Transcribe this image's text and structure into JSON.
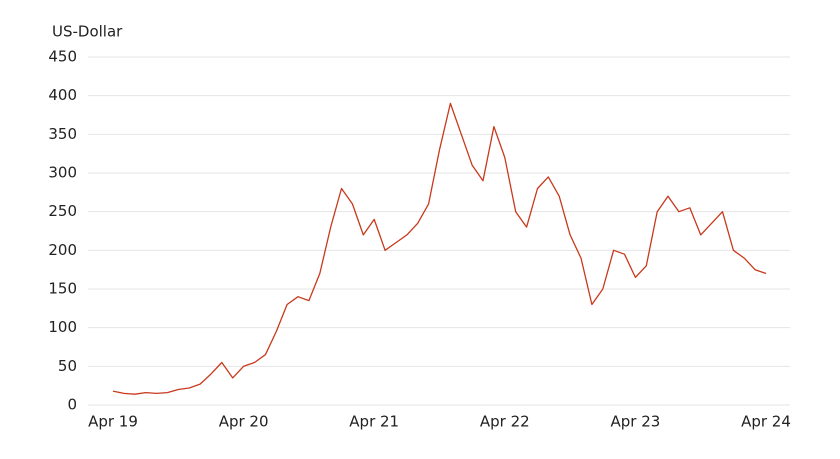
{
  "chart_data": {
    "type": "line",
    "y_label": "US-Dollar",
    "x": [
      "2019-04",
      "2019-05",
      "2019-06",
      "2019-07",
      "2019-08",
      "2019-09",
      "2019-10",
      "2019-11",
      "2019-12",
      "2020-01",
      "2020-02",
      "2020-03",
      "2020-04",
      "2020-05",
      "2020-06",
      "2020-07",
      "2020-08",
      "2020-09",
      "2020-10",
      "2020-11",
      "2020-12",
      "2021-01",
      "2021-02",
      "2021-03",
      "2021-04",
      "2021-05",
      "2021-06",
      "2021-07",
      "2021-08",
      "2021-09",
      "2021-10",
      "2021-11",
      "2021-12",
      "2022-01",
      "2022-02",
      "2022-03",
      "2022-04",
      "2022-05",
      "2022-06",
      "2022-07",
      "2022-08",
      "2022-09",
      "2022-10",
      "2022-11",
      "2022-12",
      "2023-01",
      "2023-02",
      "2023-03",
      "2023-04",
      "2023-05",
      "2023-06",
      "2023-07",
      "2023-08",
      "2023-09",
      "2023-10",
      "2023-11",
      "2023-12",
      "2024-01",
      "2024-02",
      "2024-03",
      "2024-04"
    ],
    "series": [
      {
        "name": "US-Dollar",
        "color": "#c8391c",
        "values": [
          18,
          15,
          14,
          16,
          15,
          16,
          20,
          22,
          27,
          40,
          55,
          35,
          50,
          55,
          65,
          95,
          130,
          140,
          135,
          170,
          230,
          280,
          260,
          220,
          240,
          200,
          210,
          220,
          235,
          260,
          330,
          390,
          350,
          310,
          290,
          360,
          320,
          250,
          230,
          280,
          295,
          270,
          220,
          190,
          130,
          150,
          200,
          195,
          165,
          180,
          250,
          270,
          250,
          255,
          220,
          235,
          250,
          200,
          190,
          175,
          170
        ]
      }
    ],
    "xlim": [
      "2019-04",
      "2024-04"
    ],
    "xticks": [
      {
        "value": "2019-04",
        "label": "Apr 19"
      },
      {
        "value": "2020-04",
        "label": "Apr 20"
      },
      {
        "value": "2021-04",
        "label": "Apr 21"
      },
      {
        "value": "2022-04",
        "label": "Apr 22"
      },
      {
        "value": "2023-04",
        "label": "Apr 23"
      },
      {
        "value": "2024-04",
        "label": "Apr 24"
      }
    ],
    "ylim": [
      0,
      450
    ],
    "yticks": [
      0,
      50,
      100,
      150,
      200,
      250,
      300,
      350,
      400,
      450
    ],
    "grid": true
  }
}
